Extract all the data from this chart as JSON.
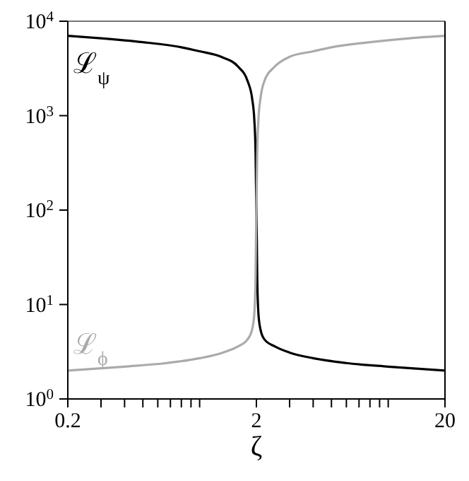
{
  "chart_data": {
    "type": "line",
    "xlabel": "ζ",
    "log": "xy",
    "marker": "none",
    "line_style": "solid",
    "xlim": [
      0.2,
      20
    ],
    "ylim": [
      1,
      10000
    ],
    "xticks": [
      0.2,
      {
        "value": 0.3,
        "label": null
      },
      {
        "value": 0.4,
        "label": null
      },
      {
        "value": 0.5,
        "label": null
      },
      {
        "value": 0.6,
        "label": null
      },
      {
        "value": 0.7,
        "label": null
      },
      {
        "value": 0.8,
        "label": null
      },
      {
        "value": 0.9,
        "label": null
      },
      {
        "value": 1,
        "label": null
      },
      2,
      {
        "value": 3,
        "label": null
      },
      {
        "value": 4,
        "label": null
      },
      {
        "value": 5,
        "label": null
      },
      {
        "value": 6,
        "label": null
      },
      {
        "value": 7,
        "label": null
      },
      {
        "value": 8,
        "label": null
      },
      {
        "value": 9,
        "label": null
      },
      {
        "value": 10,
        "label": null
      },
      20
    ],
    "yticks": [
      {
        "value": 1,
        "label": "10$^{0}$"
      },
      {
        "value": 10,
        "label": "10$^{1}$"
      },
      {
        "value": 100,
        "label": "10$^{2}$"
      },
      {
        "value": 1000,
        "label": "10$^{3}$"
      },
      {
        "value": 10000,
        "label": "10$^{4}$"
      }
    ],
    "series": [
      {
        "name": "ℒ$_{ψ}$",
        "color": "#000000",
        "x": [
          0.2,
          0.3,
          0.5,
          0.8,
          1,
          1.3,
          1.6,
          1.8,
          1.9,
          1.95,
          1.98,
          1.99,
          2,
          2.01,
          2.02,
          2.05,
          2.1,
          2.2,
          2.5,
          3,
          4,
          6,
          10,
          20
        ],
        "values": [
          7000,
          6600,
          6000,
          5300,
          4800,
          4200,
          3300,
          2300,
          1500,
          900,
          400,
          200,
          100,
          50,
          20,
          8,
          5.5,
          4.3,
          3.6,
          3.1,
          2.7,
          2.4,
          2.2,
          2.0
        ]
      },
      {
        "name": "ℒ$_{ϕ}$",
        "color": "#aaaaaa",
        "x": [
          0.2,
          0.4,
          0.67,
          1,
          1.33,
          1.6,
          1.8,
          1.9,
          1.95,
          1.98,
          1.99,
          2,
          2.01,
          2.02,
          2.05,
          2.1,
          2.2,
          2.5,
          3,
          4,
          5,
          8,
          13,
          20
        ],
        "values": [
          2.0,
          2.2,
          2.4,
          2.7,
          3.1,
          3.6,
          4.3,
          5.5,
          8,
          20,
          50,
          100,
          200,
          400,
          900,
          1500,
          2300,
          3300,
          4200,
          4800,
          5300,
          6000,
          6600,
          7000
        ]
      }
    ]
  }
}
